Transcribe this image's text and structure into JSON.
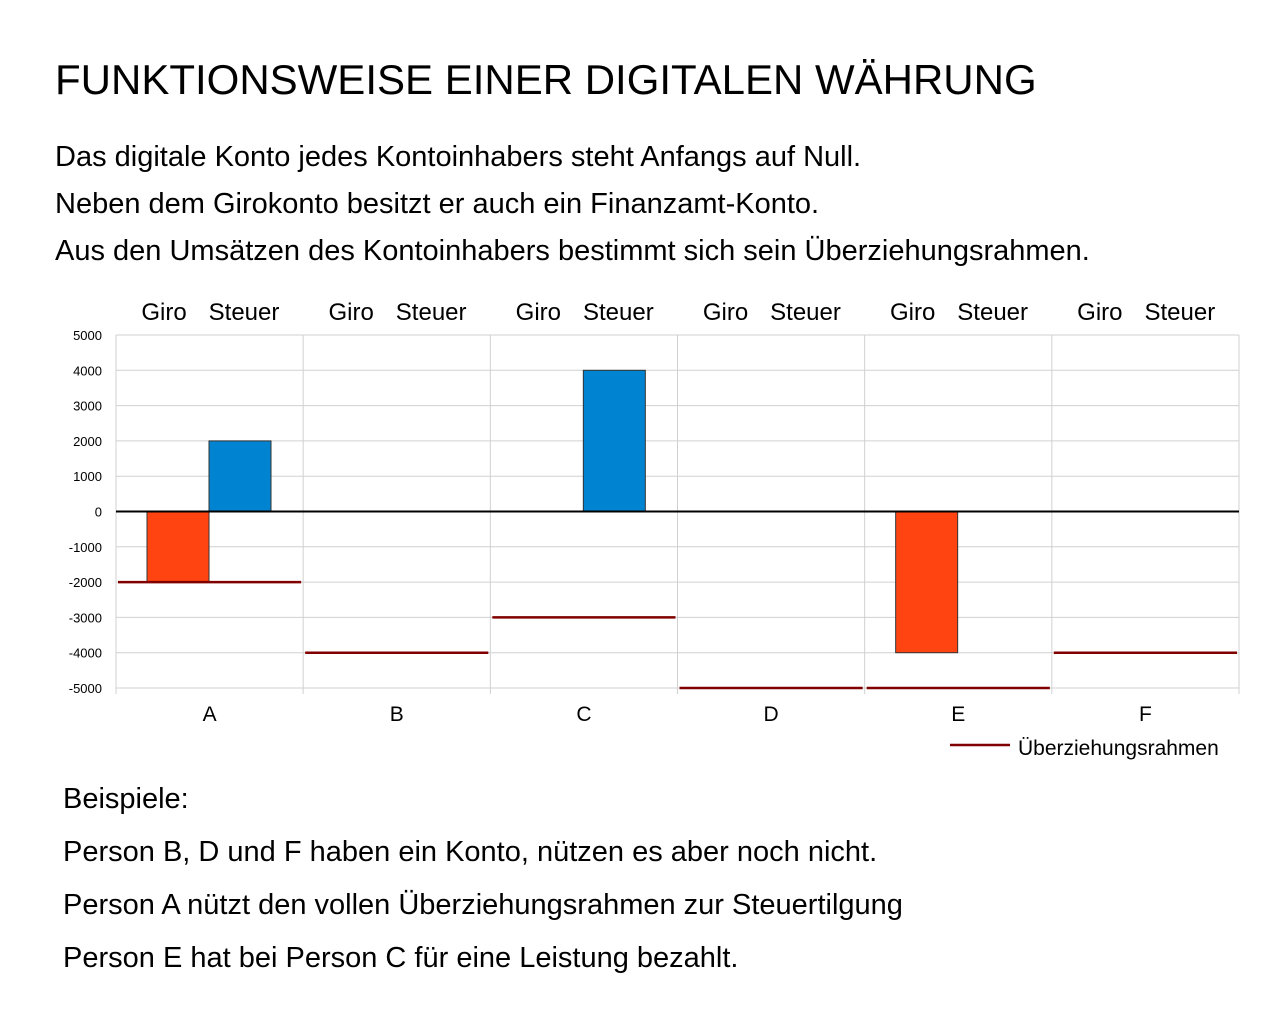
{
  "page": {
    "title": "FUNKTIONSWEISE EINER DIGITALEN WÄHRUNG",
    "intro": [
      "Das digitale Konto jedes Kontoinhabers steht Anfangs auf Null.",
      "Neben dem Girokonto besitzt er auch ein Finanzamt-Konto.",
      "Aus den Umsätzen des Kontoinhabers bestimmt sich sein Überziehungsrahmen."
    ],
    "examples": [
      "Beispiele:",
      "Person B, D und F haben ein Konto, nützen es aber noch nicht.",
      "Person A nützt den vollen Überziehungsrahmen zur Steuertilgung",
      "Person E hat bei Person C für eine Leistung bezahlt."
    ]
  },
  "chart_data": {
    "type": "bar",
    "categories": [
      "A",
      "B",
      "C",
      "D",
      "E",
      "F"
    ],
    "sub_labels": [
      "Giro",
      "Steuer"
    ],
    "series": [
      {
        "name": "Giro",
        "values": [
          -2000,
          0,
          0,
          0,
          -4000,
          0
        ],
        "color": "#ff4411"
      },
      {
        "name": "Steuer",
        "values": [
          2000,
          0,
          4000,
          0,
          0,
          0
        ],
        "color": "#0084d1"
      }
    ],
    "limit": {
      "name": "Überziehungsrahmen",
      "values": [
        -2000,
        -4000,
        -3000,
        -5000,
        -5000,
        -4000
      ],
      "color": "#800000"
    },
    "yticks": [
      5000,
      4000,
      3000,
      2000,
      1000,
      0,
      -1000,
      -2000,
      -3000,
      -4000,
      -5000
    ],
    "ylim": [
      -5000,
      5000
    ],
    "grid": true,
    "legend": "bottom-right"
  }
}
